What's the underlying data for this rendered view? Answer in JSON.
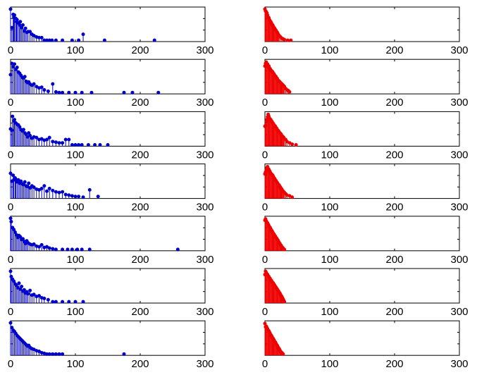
{
  "chart_data": {
    "type": "stem",
    "grid_layout": {
      "rows": 7,
      "columns": 2
    },
    "title": "",
    "xlabel": "",
    "ylabel": "",
    "xlim": [
      0,
      300
    ],
    "ylim": [
      0,
      1
    ],
    "x_tick_labels": [
      "0",
      "100",
      "200",
      "300"
    ],
    "y_tick_labels_shown": false,
    "grid": false,
    "legend": "none",
    "colors": {
      "left_column": "#0000cc",
      "right_column": "#ee0000",
      "axes": "#000000",
      "background": "#ffffff"
    },
    "panels": [
      {
        "row": 1,
        "column": "left",
        "x": [
          0,
          2,
          4,
          5,
          6,
          8,
          9,
          10,
          12,
          14,
          15,
          17,
          19,
          21,
          23,
          25,
          27,
          30,
          33,
          36,
          40,
          44,
          48,
          52,
          56,
          60,
          64,
          70,
          80,
          95,
          105,
          112,
          145,
          222
        ],
        "y": [
          0.98,
          0.42,
          0.82,
          0.74,
          0.8,
          0.7,
          0.6,
          0.66,
          0.56,
          0.5,
          0.6,
          0.42,
          0.5,
          0.32,
          0.4,
          0.28,
          0.3,
          0.3,
          0.22,
          0.18,
          0.14,
          0.12,
          0.12,
          0.04,
          0.04,
          0.04,
          0.04,
          0.04,
          0.04,
          0.04,
          0.04,
          0.22,
          0.04,
          0.04
        ]
      },
      {
        "row": 1,
        "column": "right",
        "x": [
          0,
          1,
          2,
          3,
          4,
          5,
          6,
          7,
          8,
          9,
          10,
          11,
          12,
          13,
          14,
          15,
          16,
          17,
          18,
          19,
          20,
          21,
          22,
          24,
          26,
          28,
          30,
          35,
          40
        ],
        "y": [
          0.98,
          0.92,
          0.9,
          0.86,
          0.8,
          0.74,
          0.72,
          0.66,
          0.62,
          0.6,
          0.56,
          0.52,
          0.5,
          0.46,
          0.42,
          0.4,
          0.36,
          0.34,
          0.3,
          0.28,
          0.24,
          0.2,
          0.18,
          0.14,
          0.1,
          0.08,
          0.06,
          0.04,
          0.04
        ]
      },
      {
        "row": 2,
        "column": "left",
        "x": [
          0,
          2,
          4,
          6,
          8,
          10,
          12,
          14,
          16,
          18,
          20,
          22,
          24,
          26,
          28,
          30,
          33,
          36,
          40,
          44,
          48,
          52,
          58,
          65,
          70,
          75,
          80,
          90,
          100,
          110,
          125,
          175,
          188,
          228
        ],
        "y": [
          0.58,
          0.92,
          0.82,
          0.9,
          0.74,
          0.8,
          0.66,
          0.62,
          0.56,
          0.5,
          0.48,
          0.52,
          0.38,
          0.34,
          0.36,
          0.3,
          0.26,
          0.3,
          0.22,
          0.18,
          0.2,
          0.12,
          0.08,
          0.3,
          0.06,
          0.04,
          0.04,
          0.04,
          0.04,
          0.04,
          0.04,
          0.04,
          0.04,
          0.04
        ]
      },
      {
        "row": 2,
        "column": "right",
        "x": [
          0,
          1,
          2,
          3,
          4,
          5,
          6,
          7,
          8,
          9,
          10,
          11,
          12,
          13,
          14,
          15,
          16,
          17,
          18,
          19,
          20,
          21,
          22,
          23,
          24,
          25,
          26,
          27,
          28,
          29,
          30,
          32,
          34,
          36,
          38
        ],
        "y": [
          0.84,
          0.92,
          0.96,
          0.88,
          0.9,
          0.82,
          0.84,
          0.78,
          0.76,
          0.72,
          0.7,
          0.68,
          0.66,
          0.62,
          0.6,
          0.56,
          0.54,
          0.52,
          0.48,
          0.46,
          0.42,
          0.4,
          0.38,
          0.36,
          0.34,
          0.32,
          0.3,
          0.28,
          0.26,
          0.24,
          0.22,
          0.16,
          0.12,
          0.1,
          0.06
        ]
      },
      {
        "row": 3,
        "column": "left",
        "x": [
          0,
          2,
          3,
          5,
          6,
          8,
          10,
          12,
          14,
          16,
          18,
          20,
          22,
          24,
          26,
          28,
          30,
          33,
          36,
          40,
          44,
          48,
          52,
          56,
          60,
          65,
          70,
          75,
          80,
          85,
          90,
          95,
          100,
          105,
          110,
          120,
          130,
          138,
          150
        ],
        "y": [
          0.52,
          0.48,
          0.9,
          0.76,
          0.8,
          0.7,
          0.66,
          0.64,
          0.58,
          0.5,
          0.46,
          0.5,
          0.4,
          0.36,
          0.28,
          0.4,
          0.32,
          0.24,
          0.28,
          0.26,
          0.2,
          0.22,
          0.18,
          0.2,
          0.26,
          0.14,
          0.12,
          0.1,
          0.1,
          0.2,
          0.2,
          0.04,
          0.04,
          0.04,
          0.04,
          0.04,
          0.04,
          0.04,
          0.04
        ]
      },
      {
        "row": 3,
        "column": "right",
        "x": [
          0,
          1,
          2,
          3,
          4,
          5,
          6,
          7,
          8,
          9,
          10,
          11,
          12,
          13,
          14,
          15,
          16,
          17,
          18,
          19,
          20,
          21,
          22,
          23,
          24,
          25,
          26,
          27,
          28,
          29,
          30,
          32,
          34,
          38,
          42,
          48
        ],
        "y": [
          0.6,
          0.62,
          0.74,
          0.8,
          0.88,
          0.96,
          0.9,
          0.84,
          0.82,
          0.8,
          0.76,
          0.74,
          0.7,
          0.68,
          0.64,
          0.62,
          0.6,
          0.56,
          0.54,
          0.5,
          0.48,
          0.46,
          0.42,
          0.4,
          0.38,
          0.36,
          0.32,
          0.3,
          0.28,
          0.26,
          0.22,
          0.2,
          0.14,
          0.1,
          0.06,
          0.04
        ]
      },
      {
        "row": 4,
        "column": "left",
        "x": [
          0,
          2,
          4,
          5,
          7,
          8,
          10,
          12,
          14,
          16,
          18,
          20,
          22,
          24,
          26,
          28,
          30,
          33,
          36,
          40,
          44,
          48,
          52,
          56,
          60,
          65,
          70,
          75,
          80,
          85,
          90,
          95,
          100,
          105,
          112,
          122,
          135
        ],
        "y": [
          0.76,
          0.52,
          0.7,
          0.56,
          0.62,
          0.58,
          0.5,
          0.56,
          0.46,
          0.52,
          0.44,
          0.42,
          0.5,
          0.38,
          0.36,
          0.46,
          0.32,
          0.38,
          0.34,
          0.28,
          0.26,
          0.3,
          0.38,
          0.22,
          0.3,
          0.24,
          0.2,
          0.18,
          0.2,
          0.12,
          0.1,
          0.08,
          0.06,
          0.06,
          0.04,
          0.26,
          0.06
        ]
      },
      {
        "row": 4,
        "column": "right",
        "x": [
          0,
          1,
          2,
          3,
          4,
          5,
          6,
          7,
          8,
          9,
          10,
          11,
          12,
          13,
          14,
          15,
          16,
          17,
          18,
          19,
          20,
          21,
          22,
          23,
          24,
          25,
          26,
          27,
          28,
          29,
          30,
          32,
          34,
          38,
          42
        ],
        "y": [
          0.74,
          0.8,
          0.86,
          0.92,
          0.96,
          0.9,
          0.88,
          0.84,
          0.8,
          0.76,
          0.74,
          0.72,
          0.7,
          0.66,
          0.62,
          0.6,
          0.56,
          0.54,
          0.5,
          0.48,
          0.44,
          0.42,
          0.4,
          0.36,
          0.34,
          0.3,
          0.28,
          0.24,
          0.22,
          0.2,
          0.18,
          0.14,
          0.1,
          0.08,
          0.04
        ]
      },
      {
        "row": 5,
        "column": "left",
        "x": [
          0,
          1,
          3,
          5,
          7,
          9,
          11,
          13,
          15,
          17,
          19,
          21,
          23,
          25,
          27,
          30,
          33,
          36,
          40,
          44,
          48,
          52,
          56,
          60,
          65,
          70,
          80,
          88,
          95,
          103,
          110,
          122,
          258
        ],
        "y": [
          0.98,
          0.88,
          0.7,
          0.64,
          0.56,
          0.48,
          0.4,
          0.46,
          0.42,
          0.34,
          0.36,
          0.28,
          0.22,
          0.3,
          0.24,
          0.2,
          0.18,
          0.2,
          0.14,
          0.12,
          0.18,
          0.1,
          0.12,
          0.08,
          0.06,
          0.04,
          0.04,
          0.04,
          0.04,
          0.04,
          0.04,
          0.04,
          0.04
        ]
      },
      {
        "row": 5,
        "column": "right",
        "x": [
          0,
          1,
          2,
          3,
          4,
          5,
          6,
          7,
          8,
          9,
          10,
          11,
          12,
          13,
          14,
          15,
          16,
          17,
          18,
          19,
          20,
          21,
          22,
          23,
          24,
          25,
          26,
          27,
          28,
          30
        ],
        "y": [
          0.92,
          0.96,
          0.9,
          0.86,
          0.84,
          0.8,
          0.76,
          0.72,
          0.7,
          0.66,
          0.62,
          0.6,
          0.56,
          0.52,
          0.5,
          0.46,
          0.44,
          0.4,
          0.38,
          0.34,
          0.32,
          0.28,
          0.24,
          0.22,
          0.18,
          0.16,
          0.12,
          0.1,
          0.08,
          0.04
        ]
      },
      {
        "row": 6,
        "column": "left",
        "x": [
          0,
          1,
          3,
          5,
          7,
          9,
          11,
          13,
          15,
          17,
          19,
          21,
          23,
          25,
          27,
          30,
          33,
          36,
          40,
          44,
          48,
          52,
          58,
          65,
          70,
          80,
          90,
          100,
          112
        ],
        "y": [
          0.96,
          0.8,
          0.72,
          0.66,
          0.58,
          0.54,
          0.46,
          0.6,
          0.42,
          0.5,
          0.36,
          0.4,
          0.3,
          0.34,
          0.28,
          0.38,
          0.24,
          0.26,
          0.2,
          0.22,
          0.16,
          0.14,
          0.1,
          0.04,
          0.04,
          0.04,
          0.04,
          0.04,
          0.04
        ]
      },
      {
        "row": 6,
        "column": "right",
        "x": [
          0,
          1,
          2,
          3,
          4,
          5,
          6,
          7,
          8,
          9,
          10,
          11,
          12,
          13,
          14,
          15,
          16,
          17,
          18,
          19,
          20,
          21,
          22,
          23,
          24,
          25,
          26,
          27,
          28,
          29,
          30
        ],
        "y": [
          0.86,
          0.96,
          0.92,
          0.88,
          0.86,
          0.82,
          0.8,
          0.76,
          0.74,
          0.7,
          0.68,
          0.64,
          0.62,
          0.6,
          0.56,
          0.54,
          0.5,
          0.48,
          0.44,
          0.42,
          0.38,
          0.36,
          0.32,
          0.3,
          0.26,
          0.22,
          0.2,
          0.16,
          0.12,
          0.08,
          0.04
        ]
      },
      {
        "row": 7,
        "column": "left",
        "x": [
          0,
          2,
          4,
          6,
          8,
          10,
          12,
          14,
          16,
          18,
          20,
          22,
          24,
          26,
          28,
          30,
          33,
          36,
          40,
          44,
          48,
          52,
          56,
          60,
          65,
          70,
          75,
          80,
          175
        ],
        "y": [
          0.98,
          0.84,
          0.76,
          0.72,
          0.66,
          0.6,
          0.56,
          0.52,
          0.48,
          0.44,
          0.4,
          0.36,
          0.32,
          0.28,
          0.3,
          0.24,
          0.2,
          0.18,
          0.14,
          0.12,
          0.08,
          0.06,
          0.04,
          0.04,
          0.04,
          0.04,
          0.04,
          0.04,
          0.04
        ]
      },
      {
        "row": 7,
        "column": "right",
        "x": [
          0,
          1,
          2,
          3,
          4,
          5,
          6,
          7,
          8,
          9,
          10,
          11,
          12,
          13,
          14,
          15,
          16,
          17,
          18,
          19,
          20,
          21,
          22,
          23,
          24,
          25,
          26,
          27,
          28
        ],
        "y": [
          0.96,
          0.86,
          0.88,
          0.84,
          0.8,
          0.76,
          0.74,
          0.7,
          0.66,
          0.62,
          0.6,
          0.56,
          0.52,
          0.5,
          0.46,
          0.42,
          0.4,
          0.36,
          0.32,
          0.3,
          0.26,
          0.22,
          0.2,
          0.16,
          0.12,
          0.1,
          0.08,
          0.06,
          0.04
        ]
      }
    ]
  }
}
